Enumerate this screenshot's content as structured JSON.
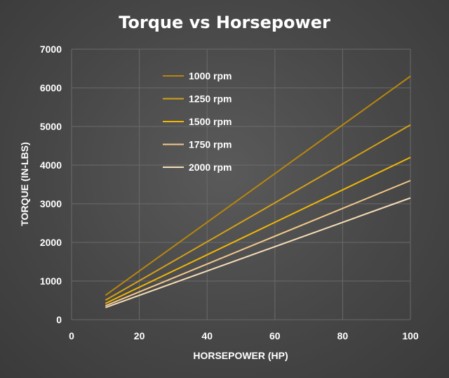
{
  "chart_data": {
    "type": "line",
    "title": "Torque vs Horsepower",
    "xlabel": "HORSEPOWER (HP)",
    "ylabel": "TORQUE (IN-LBS)",
    "xlim": [
      0,
      100
    ],
    "ylim": [
      0,
      7000
    ],
    "xticks": [
      "0",
      "20",
      "40",
      "60",
      "80",
      "100"
    ],
    "yticks": [
      "0",
      "1000",
      "2000",
      "3000",
      "4000",
      "5000",
      "6000",
      "7000"
    ],
    "grid": true,
    "legend_position": "top-left",
    "series": [
      {
        "name": "1000 rpm",
        "color": "#B8860B",
        "points": [
          [
            10,
            630
          ],
          [
            100,
            6300
          ]
        ]
      },
      {
        "name": "1250 rpm",
        "color": "#D4A017",
        "points": [
          [
            10,
            504
          ],
          [
            100,
            5040
          ]
        ]
      },
      {
        "name": "1500 rpm",
        "color": "#F2B705",
        "points": [
          [
            10,
            420
          ],
          [
            100,
            4200
          ]
        ]
      },
      {
        "name": "1750 rpm",
        "color": "#F3C98B",
        "points": [
          [
            10,
            360
          ],
          [
            100,
            3600
          ]
        ]
      },
      {
        "name": "2000 rpm",
        "color": "#F7DDB8",
        "points": [
          [
            10,
            315
          ],
          [
            100,
            3150
          ]
        ]
      }
    ]
  }
}
